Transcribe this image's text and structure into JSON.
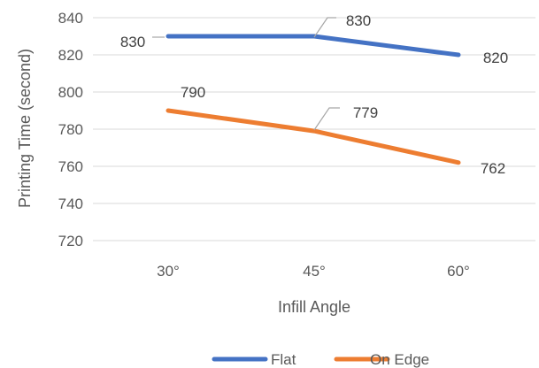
{
  "chart_data": {
    "type": "line",
    "categories": [
      "30°",
      "45°",
      "60°"
    ],
    "series": [
      {
        "name": "Flat",
        "values": [
          830,
          830,
          820
        ],
        "color": "#4472C4"
      },
      {
        "name": "On Edge",
        "values": [
          790,
          779,
          762
        ],
        "color": "#ED7D31"
      }
    ],
    "xlabel": "Infill Angle",
    "ylabel": "Printing Time (second)",
    "ylim": [
      720,
      840
    ],
    "yticks": [
      720,
      740,
      760,
      780,
      800,
      820,
      840
    ],
    "grid": true,
    "legend_position": "bottom"
  }
}
